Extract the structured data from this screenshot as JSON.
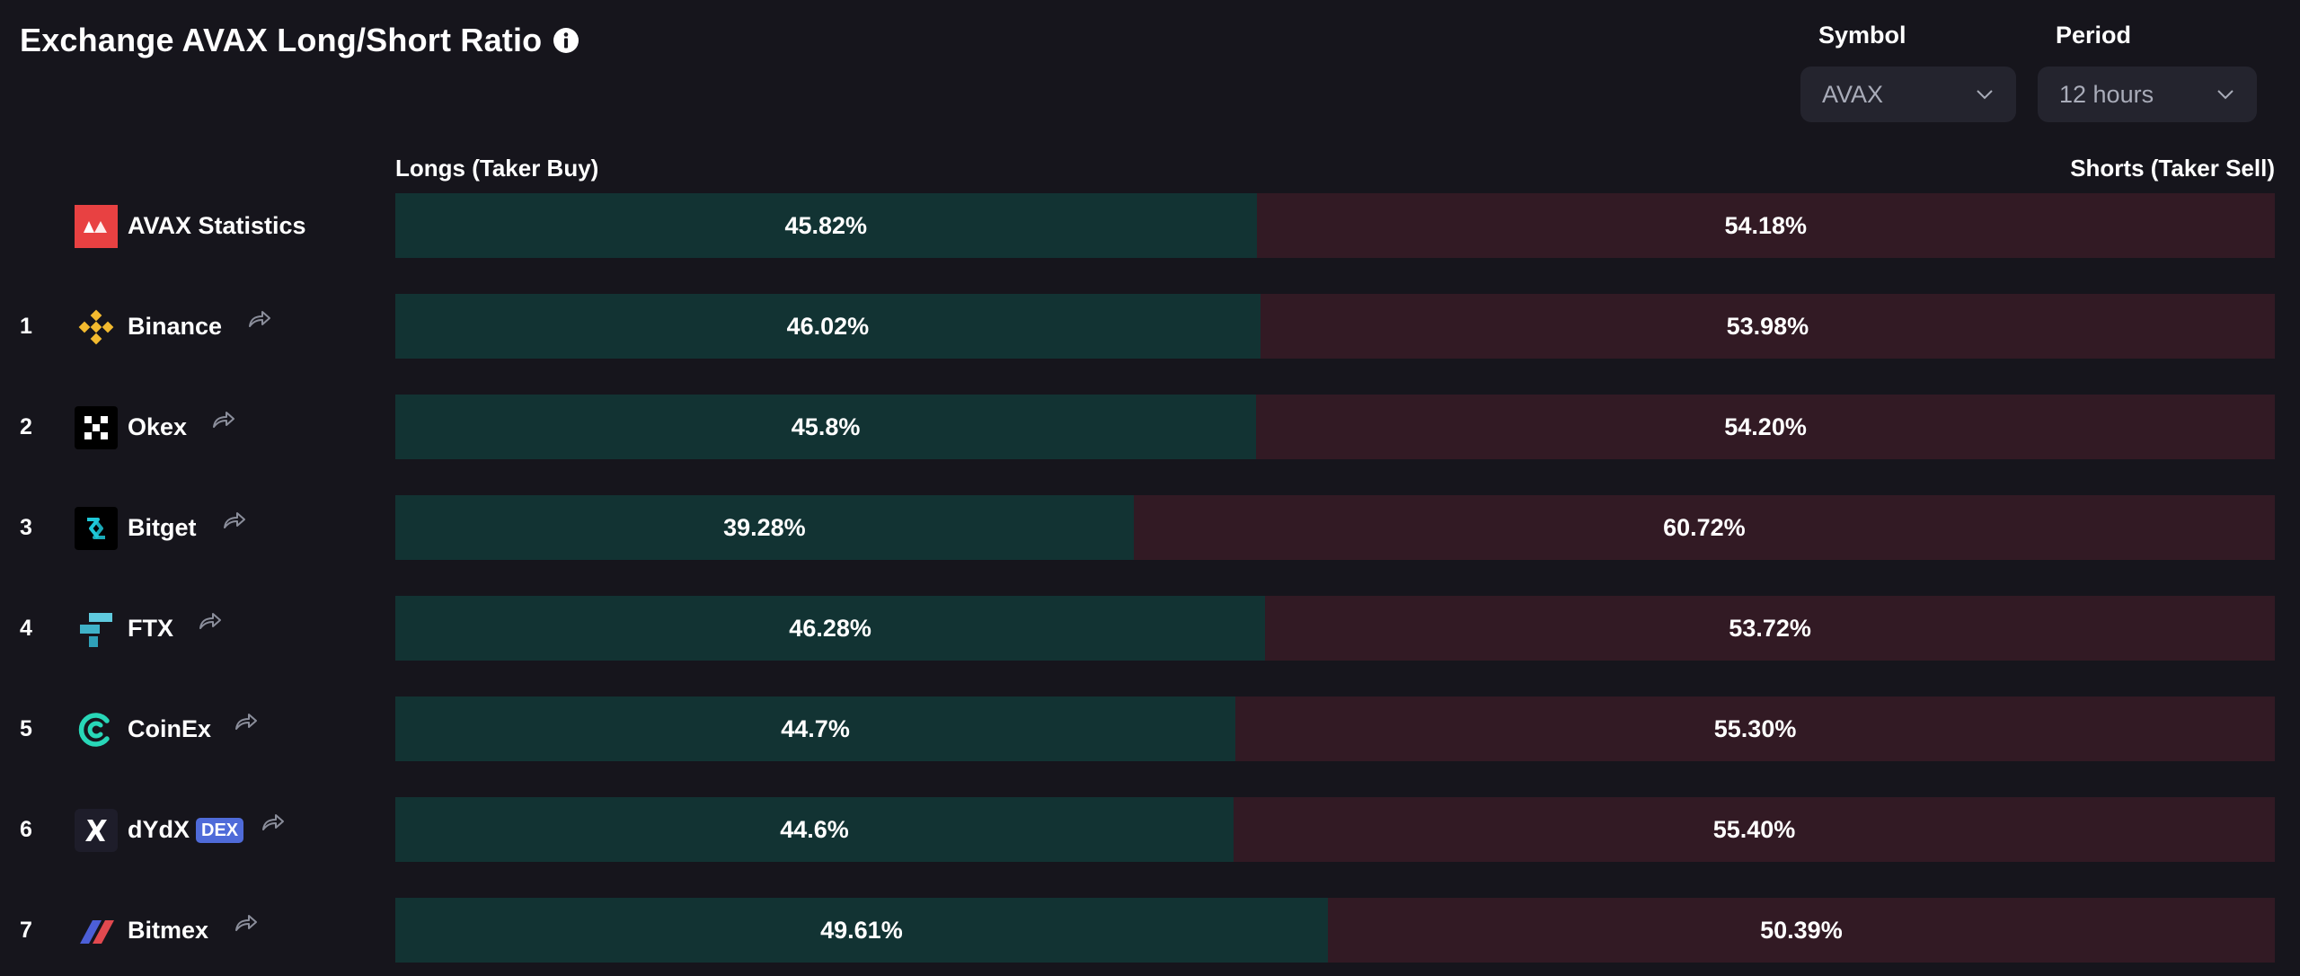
{
  "header": {
    "title": "Exchange AVAX Long/Short Ratio",
    "info_icon": "info-icon"
  },
  "controls": {
    "symbol": {
      "label": "Symbol",
      "value": "AVAX"
    },
    "period": {
      "label": "Period",
      "value": "12 hours"
    }
  },
  "columns": {
    "longs": "Longs (Taker Buy)",
    "shorts": "Shorts (Taker Sell)"
  },
  "colors": {
    "background": "#16151c",
    "long": "#123333",
    "short": "#321a24",
    "dex_badge": "#4f6bd9"
  },
  "summary": {
    "name": "AVAX Statistics",
    "icon": "avax-logo-icon",
    "long_pct": 45.82,
    "long": "45.82%",
    "short": "54.18%"
  },
  "exchanges": [
    {
      "rank": "1",
      "name": "Binance",
      "icon": "binance-logo-icon",
      "long_pct": 46.02,
      "long": "46.02%",
      "short": "53.98%"
    },
    {
      "rank": "2",
      "name": "Okex",
      "icon": "okex-logo-icon",
      "long_pct": 45.8,
      "long": "45.8%",
      "short": "54.20%"
    },
    {
      "rank": "3",
      "name": "Bitget",
      "icon": "bitget-logo-icon",
      "long_pct": 39.28,
      "long": "39.28%",
      "short": "60.72%"
    },
    {
      "rank": "4",
      "name": "FTX",
      "icon": "ftx-logo-icon",
      "long_pct": 46.28,
      "long": "46.28%",
      "short": "53.72%"
    },
    {
      "rank": "5",
      "name": "CoinEx",
      "icon": "coinex-logo-icon",
      "long_pct": 44.7,
      "long": "44.7%",
      "short": "55.30%"
    },
    {
      "rank": "6",
      "name": "dYdX",
      "badge": "DEX",
      "icon": "dydx-logo-icon",
      "long_pct": 44.6,
      "long": "44.6%",
      "short": "55.40%"
    },
    {
      "rank": "7",
      "name": "Bitmex",
      "icon": "bitmex-logo-icon",
      "long_pct": 49.61,
      "long": "49.61%",
      "short": "50.39%"
    }
  ]
}
